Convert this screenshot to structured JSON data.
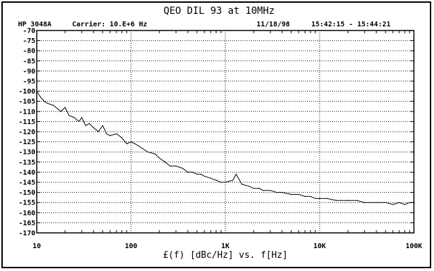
{
  "header": {
    "title": "QEO DIL 93 at 10MHz",
    "instrument": "HP 3048A",
    "carrier": "Carrier: 10.E+6 Hz",
    "date": "11/18/98",
    "time_range": "15:42:15 - 15:44:21"
  },
  "chart_data": {
    "type": "line",
    "title": "QEO DIL 93 at 10MHz",
    "xlabel": "£(f) [dBc/Hz] vs. f[Hz]",
    "ylabel": "",
    "xscale": "log",
    "xlim": [
      10,
      100000
    ],
    "ylim": [
      -170,
      -70
    ],
    "grid": true,
    "x_ticks": [
      10,
      100,
      1000,
      10000,
      100000
    ],
    "x_tick_labels": [
      "10",
      "100",
      "1K",
      "10K",
      "100K"
    ],
    "y_ticks": [
      -70,
      -75,
      -80,
      -85,
      -90,
      -95,
      -100,
      -105,
      -110,
      -115,
      -120,
      -125,
      -130,
      -135,
      -140,
      -145,
      -150,
      -155,
      -160,
      -165,
      -170
    ],
    "y_tick_labels": [
      "-70",
      "-75",
      "-80",
      "-85",
      "-90",
      "-95",
      "-100",
      "-105",
      "-110",
      "-115",
      "-120",
      "-125",
      "-130",
      "-135",
      "-140",
      "-145",
      "-150",
      "-155",
      "-160",
      "-165",
      "-170"
    ],
    "series": [
      {
        "x": [
          10,
          11,
          12,
          13,
          15,
          17,
          18,
          20,
          22,
          25,
          28,
          30,
          33,
          36,
          40,
          45,
          50,
          55,
          60,
          70,
          80,
          90,
          100,
          110,
          120,
          150,
          180,
          200,
          230,
          260,
          300,
          350,
          400,
          450,
          500,
          550,
          600,
          700,
          800,
          900,
          1000,
          1200,
          1300,
          1500,
          1800,
          2000,
          2300,
          2500,
          3000,
          3500,
          4000,
          5000,
          6000,
          7000,
          8000,
          9000,
          10000,
          12000,
          15000,
          20000,
          25000,
          30000,
          40000,
          50000,
          60000,
          70000,
          80000,
          90000,
          100000
        ],
        "y": [
          -100,
          -103,
          -105,
          -106,
          -107,
          -109,
          -110,
          -108,
          -112,
          -113,
          -115,
          -113,
          -117,
          -116,
          -118,
          -120,
          -117,
          -121,
          -122,
          -121,
          -123,
          -126,
          -125,
          -126,
          -127,
          -130,
          -131,
          -133,
          -135,
          -137,
          -137,
          -138,
          -140,
          -140,
          -141,
          -141,
          -142,
          -143,
          -144,
          -145,
          -145,
          -144,
          -141,
          -146,
          -147,
          -148,
          -148,
          -149,
          -149,
          -150,
          -150,
          -151,
          -151,
          -152,
          -152,
          -153,
          -153,
          -153,
          -154,
          -154,
          -154,
          -155,
          -155,
          -155,
          -156,
          -155,
          -156,
          -155,
          -155
        ]
      }
    ]
  }
}
